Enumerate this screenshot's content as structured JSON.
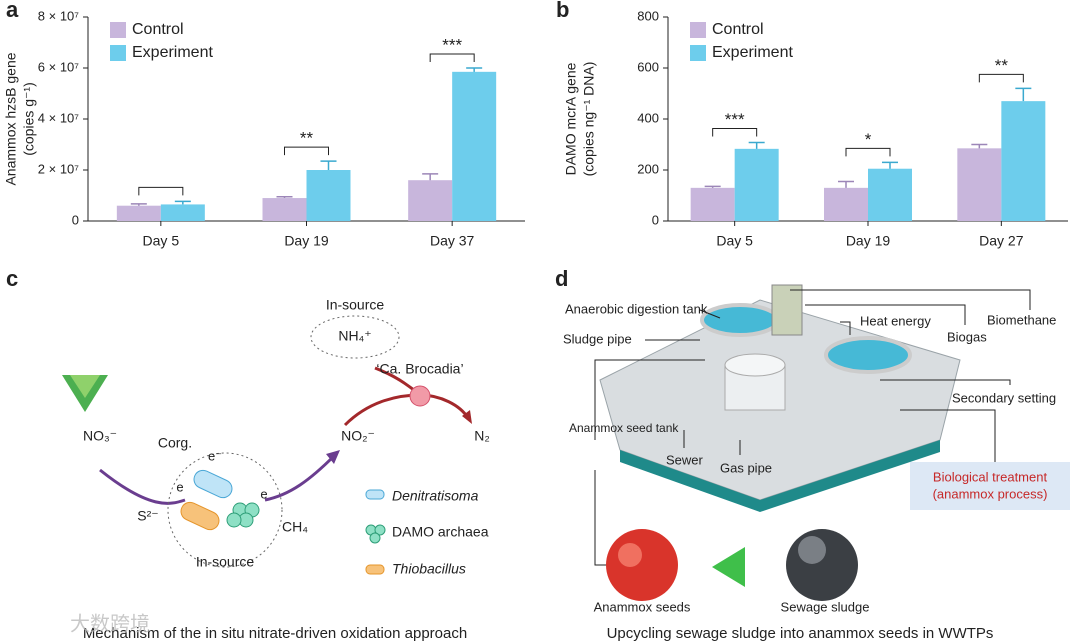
{
  "chart_data": [
    {
      "type": "bar",
      "panel": "a",
      "ylabel": [
        "Anammox hzsB gene",
        "(copies g⁻¹)"
      ],
      "categories": [
        "Day 5",
        "Day 19",
        "Day 37"
      ],
      "series": [
        {
          "name": "Control",
          "color": "#c8b6dc",
          "values": [
            6000000,
            9000000,
            16000000
          ],
          "errors": [
            700000,
            500000,
            2500000
          ]
        },
        {
          "name": "Experiment",
          "color": "#6dcdec",
          "values": [
            6500000,
            20000000,
            58500000
          ],
          "errors": [
            1200000,
            3500000,
            1500000
          ]
        }
      ],
      "significance": [
        null,
        "**",
        "***"
      ],
      "ylim": [
        0,
        80000000
      ],
      "yticks": [
        0,
        {
          "value": 20000000,
          "label": "2 × 10⁷"
        },
        {
          "value": 40000000,
          "label": "4 × 10⁷"
        },
        {
          "value": 60000000,
          "label": "6 × 10⁷"
        },
        {
          "value": 80000000,
          "label": "8 × 10⁷"
        }
      ]
    },
    {
      "type": "bar",
      "panel": "b",
      "ylabel": [
        "DAMO mcrA gene",
        "(copies ng⁻¹ DNA)"
      ],
      "categories": [
        "Day 5",
        "Day 19",
        "Day 27"
      ],
      "series": [
        {
          "name": "Control",
          "color": "#c8b6dc",
          "values": [
            130,
            130,
            285
          ],
          "errors": [
            6,
            25,
            15
          ]
        },
        {
          "name": "Experiment",
          "color": "#6dcdec",
          "values": [
            283,
            205,
            470
          ],
          "errors": [
            25,
            25,
            50
          ]
        }
      ],
      "significance": [
        "***",
        "*",
        "**"
      ],
      "ylim": [
        0,
        800
      ],
      "yticks": [
        0,
        200,
        400,
        600,
        800
      ]
    }
  ],
  "panel_c": {
    "label": "c",
    "top_source": "In-source",
    "ammonium": "NH₄⁺",
    "bacterium": "‘Ca. Brocadia’",
    "nitrate": "NO₃⁻",
    "nitrite": "NO₂⁻",
    "nitrogen": "N₂",
    "organic_carbon": "Corg.",
    "electrons": [
      "e⁻",
      "e",
      "e"
    ],
    "sulfide": "S²⁻",
    "methane": "CH₄",
    "bottom_source": "In-source",
    "legend": [
      "Denitratisoma",
      "DAMO archaea",
      "Thiobacillus"
    ],
    "caption": "Mechanism of the in situ nitrate-driven oxidation approach"
  },
  "panel_d": {
    "label": "d",
    "labels": [
      "Anaerobic digestion tank",
      "Sludge pipe",
      "Heat energy",
      "Biomethane",
      "Biogas",
      "Secondary setting",
      "Anammox seed tank",
      "Sewer",
      "Gas pipe"
    ],
    "treatment": [
      "Biological treatment",
      "(anammox process)"
    ],
    "seeds": "Anammox seeds",
    "sludge": "Sewage sludge",
    "caption": "Upcycling sewage sludge into anammox seeds in WWTPs"
  },
  "watermark": "大数跨境"
}
